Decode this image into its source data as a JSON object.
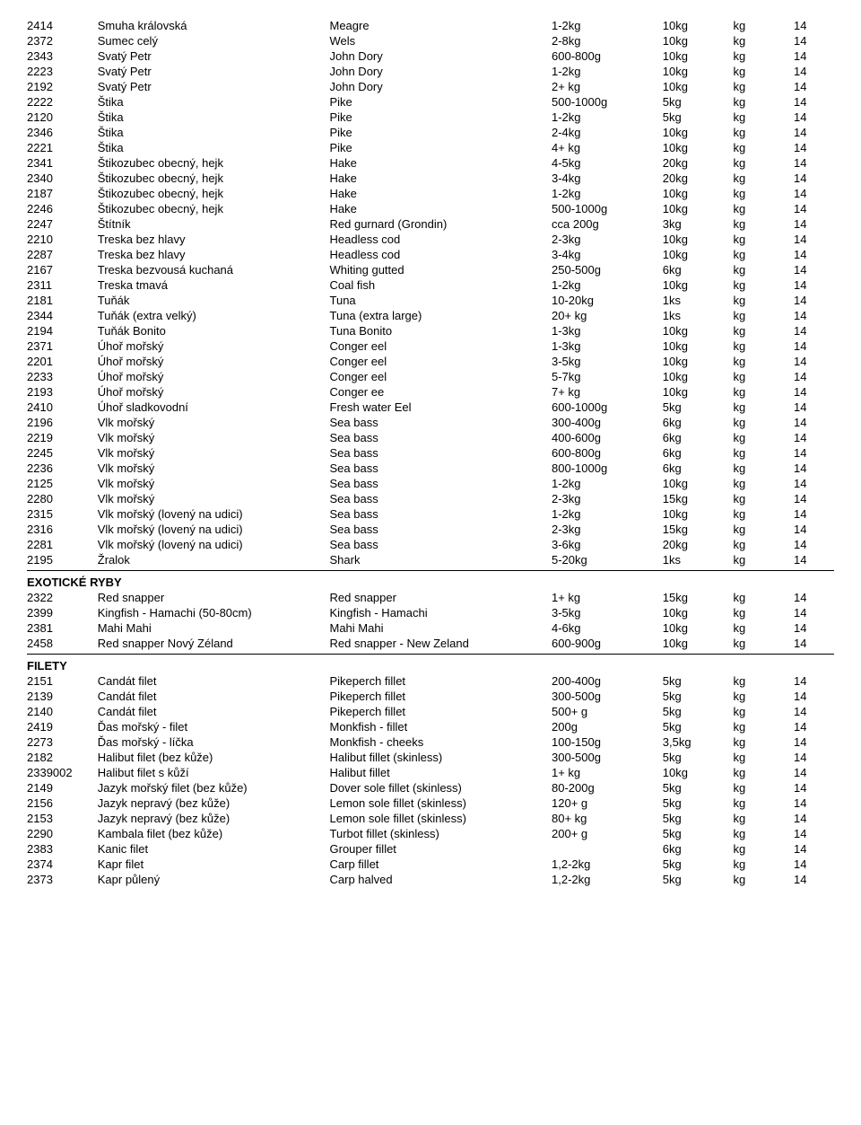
{
  "sections": [
    {
      "header": null,
      "rows": [
        [
          "2414",
          "Smuha královská",
          "Meagre",
          "1-2kg",
          "10kg",
          "kg",
          "14"
        ],
        [
          "2372",
          "Sumec celý",
          "Wels",
          "2-8kg",
          "10kg",
          "kg",
          "14"
        ],
        [
          "2343",
          "Svatý Petr",
          "John Dory",
          "600-800g",
          "10kg",
          "kg",
          "14"
        ],
        [
          "2223",
          "Svatý Petr",
          "John Dory",
          "1-2kg",
          "10kg",
          "kg",
          "14"
        ],
        [
          "2192",
          "Svatý Petr",
          "John Dory",
          "2+ kg",
          "10kg",
          "kg",
          "14"
        ],
        [
          "2222",
          "Štika",
          "Pike",
          "500-1000g",
          "5kg",
          "kg",
          "14"
        ],
        [
          "2120",
          "Štika",
          "Pike",
          "1-2kg",
          "5kg",
          "kg",
          "14"
        ],
        [
          "2346",
          "Štika",
          "Pike",
          "2-4kg",
          "10kg",
          "kg",
          "14"
        ],
        [
          "2221",
          "Štika",
          "Pike",
          "4+ kg",
          "10kg",
          "kg",
          "14"
        ],
        [
          "2341",
          "Štikozubec obecný, hejk",
          "Hake",
          "4-5kg",
          "20kg",
          "kg",
          "14"
        ],
        [
          "2340",
          "Štikozubec obecný, hejk",
          "Hake",
          "3-4kg",
          "20kg",
          "kg",
          "14"
        ],
        [
          "2187",
          "Štikozubec obecný, hejk",
          "Hake",
          "1-2kg",
          "10kg",
          "kg",
          "14"
        ],
        [
          "2246",
          "Štikozubec obecný, hejk",
          "Hake",
          "500-1000g",
          "10kg",
          "kg",
          "14"
        ],
        [
          "2247",
          "Štítník",
          "Red gurnard (Grondin)",
          "cca 200g",
          "3kg",
          "kg",
          "14"
        ],
        [
          "2210",
          "Treska bez hlavy",
          "Headless cod",
          "2-3kg",
          "10kg",
          "kg",
          "14"
        ],
        [
          "2287",
          "Treska bez hlavy",
          "Headless cod",
          "3-4kg",
          "10kg",
          "kg",
          "14"
        ],
        [
          "2167",
          "Treska bezvousá kuchaná",
          "Whiting gutted",
          "250-500g",
          "6kg",
          "kg",
          "14"
        ],
        [
          "2311",
          "Treska tmavá",
          "Coal fish",
          "1-2kg",
          "10kg",
          "kg",
          "14"
        ],
        [
          "2181",
          "Tuňák",
          "Tuna",
          "10-20kg",
          "1ks",
          "kg",
          "14"
        ],
        [
          "2344",
          "Tuňák (extra velký)",
          "Tuna (extra large)",
          "20+ kg",
          "1ks",
          "kg",
          "14"
        ],
        [
          "2194",
          "Tuňák Bonito",
          "Tuna Bonito",
          "1-3kg",
          "10kg",
          "kg",
          "14"
        ],
        [
          "2371",
          "Úhoř mořský",
          "Conger eel",
          "1-3kg",
          "10kg",
          "kg",
          "14"
        ],
        [
          "2201",
          "Úhoř mořský",
          "Conger eel",
          "3-5kg",
          "10kg",
          "kg",
          "14"
        ],
        [
          "2233",
          "Úhoř mořský",
          "Conger eel",
          "5-7kg",
          "10kg",
          "kg",
          "14"
        ],
        [
          "2193",
          "Úhoř mořský",
          "Conger ee",
          "7+ kg",
          "10kg",
          "kg",
          "14"
        ],
        [
          "2410",
          "Úhoř sladkovodní",
          "Fresh water Eel",
          "600-1000g",
          "5kg",
          "kg",
          "14"
        ],
        [
          "2196",
          "Vlk mořský",
          "Sea bass",
          "300-400g",
          "6kg",
          "kg",
          "14"
        ],
        [
          "2219",
          "Vlk mořský",
          "Sea bass",
          "400-600g",
          "6kg",
          "kg",
          "14"
        ],
        [
          "2245",
          "Vlk mořský",
          "Sea bass",
          "600-800g",
          "6kg",
          "kg",
          "14"
        ],
        [
          "2236",
          "Vlk mořský",
          "Sea bass",
          "800-1000g",
          "6kg",
          "kg",
          "14"
        ],
        [
          "2125",
          "Vlk mořský",
          "Sea bass",
          "1-2kg",
          "10kg",
          "kg",
          "14"
        ],
        [
          "2280",
          "Vlk mořský",
          "Sea bass",
          "2-3kg",
          "15kg",
          "kg",
          "14"
        ],
        [
          "2315",
          "Vlk mořský (lovený na udici)",
          "Sea bass",
          "1-2kg",
          "10kg",
          "kg",
          "14"
        ],
        [
          "2316",
          "Vlk mořský (lovený na udici)",
          "Sea bass",
          "2-3kg",
          "15kg",
          "kg",
          "14"
        ],
        [
          "2281",
          "Vlk mořský (lovený na udici)",
          "Sea bass",
          "3-6kg",
          "20kg",
          "kg",
          "14"
        ],
        [
          "2195",
          "Žralok",
          "Shark",
          "5-20kg",
          "1ks",
          "kg",
          "14"
        ]
      ],
      "rule_after": true
    },
    {
      "header": "EXOTICKÉ RYBY",
      "rows": [
        [
          "2322",
          "Red snapper",
          "Red snapper",
          "1+ kg",
          "15kg",
          "kg",
          "14"
        ],
        [
          "2399",
          "Kingfish - Hamachi (50-80cm)",
          "Kingfish - Hamachi",
          "3-5kg",
          "10kg",
          "kg",
          "14"
        ],
        [
          "2381",
          "Mahi Mahi",
          "Mahi Mahi",
          "4-6kg",
          "10kg",
          "kg",
          "14"
        ],
        [
          "2458",
          "Red snapper Nový Zéland",
          "Red snapper - New Zeland",
          "600-900g",
          "10kg",
          "kg",
          "14"
        ]
      ],
      "rule_after": true
    },
    {
      "header": "FILETY",
      "rows": [
        [
          "2151",
          "Candát filet",
          "Pikeperch fillet",
          "200-400g",
          "5kg",
          "kg",
          "14"
        ],
        [
          "2139",
          "Candát filet",
          "Pikeperch fillet",
          "300-500g",
          "5kg",
          "kg",
          "14"
        ],
        [
          "2140",
          "Candát filet",
          "Pikeperch fillet",
          "500+ g",
          "5kg",
          "kg",
          "14"
        ],
        [
          "2419",
          "Ďas mořský - filet",
          "Monkfish - fillet",
          "200g",
          "5kg",
          "kg",
          "14"
        ],
        [
          "2273",
          "Ďas mořský - líčka",
          "Monkfish - cheeks",
          "100-150g",
          "3,5kg",
          "kg",
          "14"
        ],
        [
          "2182",
          "Halibut filet (bez kůže)",
          "Halibut fillet (skinless)",
          "300-500g",
          "5kg",
          "kg",
          "14"
        ],
        [
          "2339002",
          "Halibut filet s kůží",
          "Halibut fillet",
          "1+ kg",
          "10kg",
          "kg",
          "14"
        ],
        [
          "2149",
          "Jazyk mořský filet (bez kůže)",
          "Dover sole fillet (skinless)",
          "80-200g",
          "5kg",
          "kg",
          "14"
        ],
        [
          "2156",
          "Jazyk nepravý (bez kůže)",
          "Lemon sole fillet (skinless)",
          "120+ g",
          "5kg",
          "kg",
          "14"
        ],
        [
          "2153",
          "Jazyk nepravý (bez kůže)",
          "Lemon sole fillet (skinless)",
          "80+ kg",
          "5kg",
          "kg",
          "14"
        ],
        [
          "2290",
          "Kambala filet (bez kůže)",
          "Turbot fillet (skinless)",
          "200+ g",
          "5kg",
          "kg",
          "14"
        ],
        [
          "2383",
          "Kanic filet",
          "Grouper fillet",
          "",
          "6kg",
          "kg",
          "14"
        ],
        [
          "2374",
          "Kapr filet",
          "Carp fillet",
          "1,2-2kg",
          "5kg",
          "kg",
          "14"
        ],
        [
          "2373",
          "Kapr půlený",
          "Carp halved",
          "1,2-2kg",
          "5kg",
          "kg",
          "14"
        ]
      ],
      "rule_after": false
    }
  ]
}
